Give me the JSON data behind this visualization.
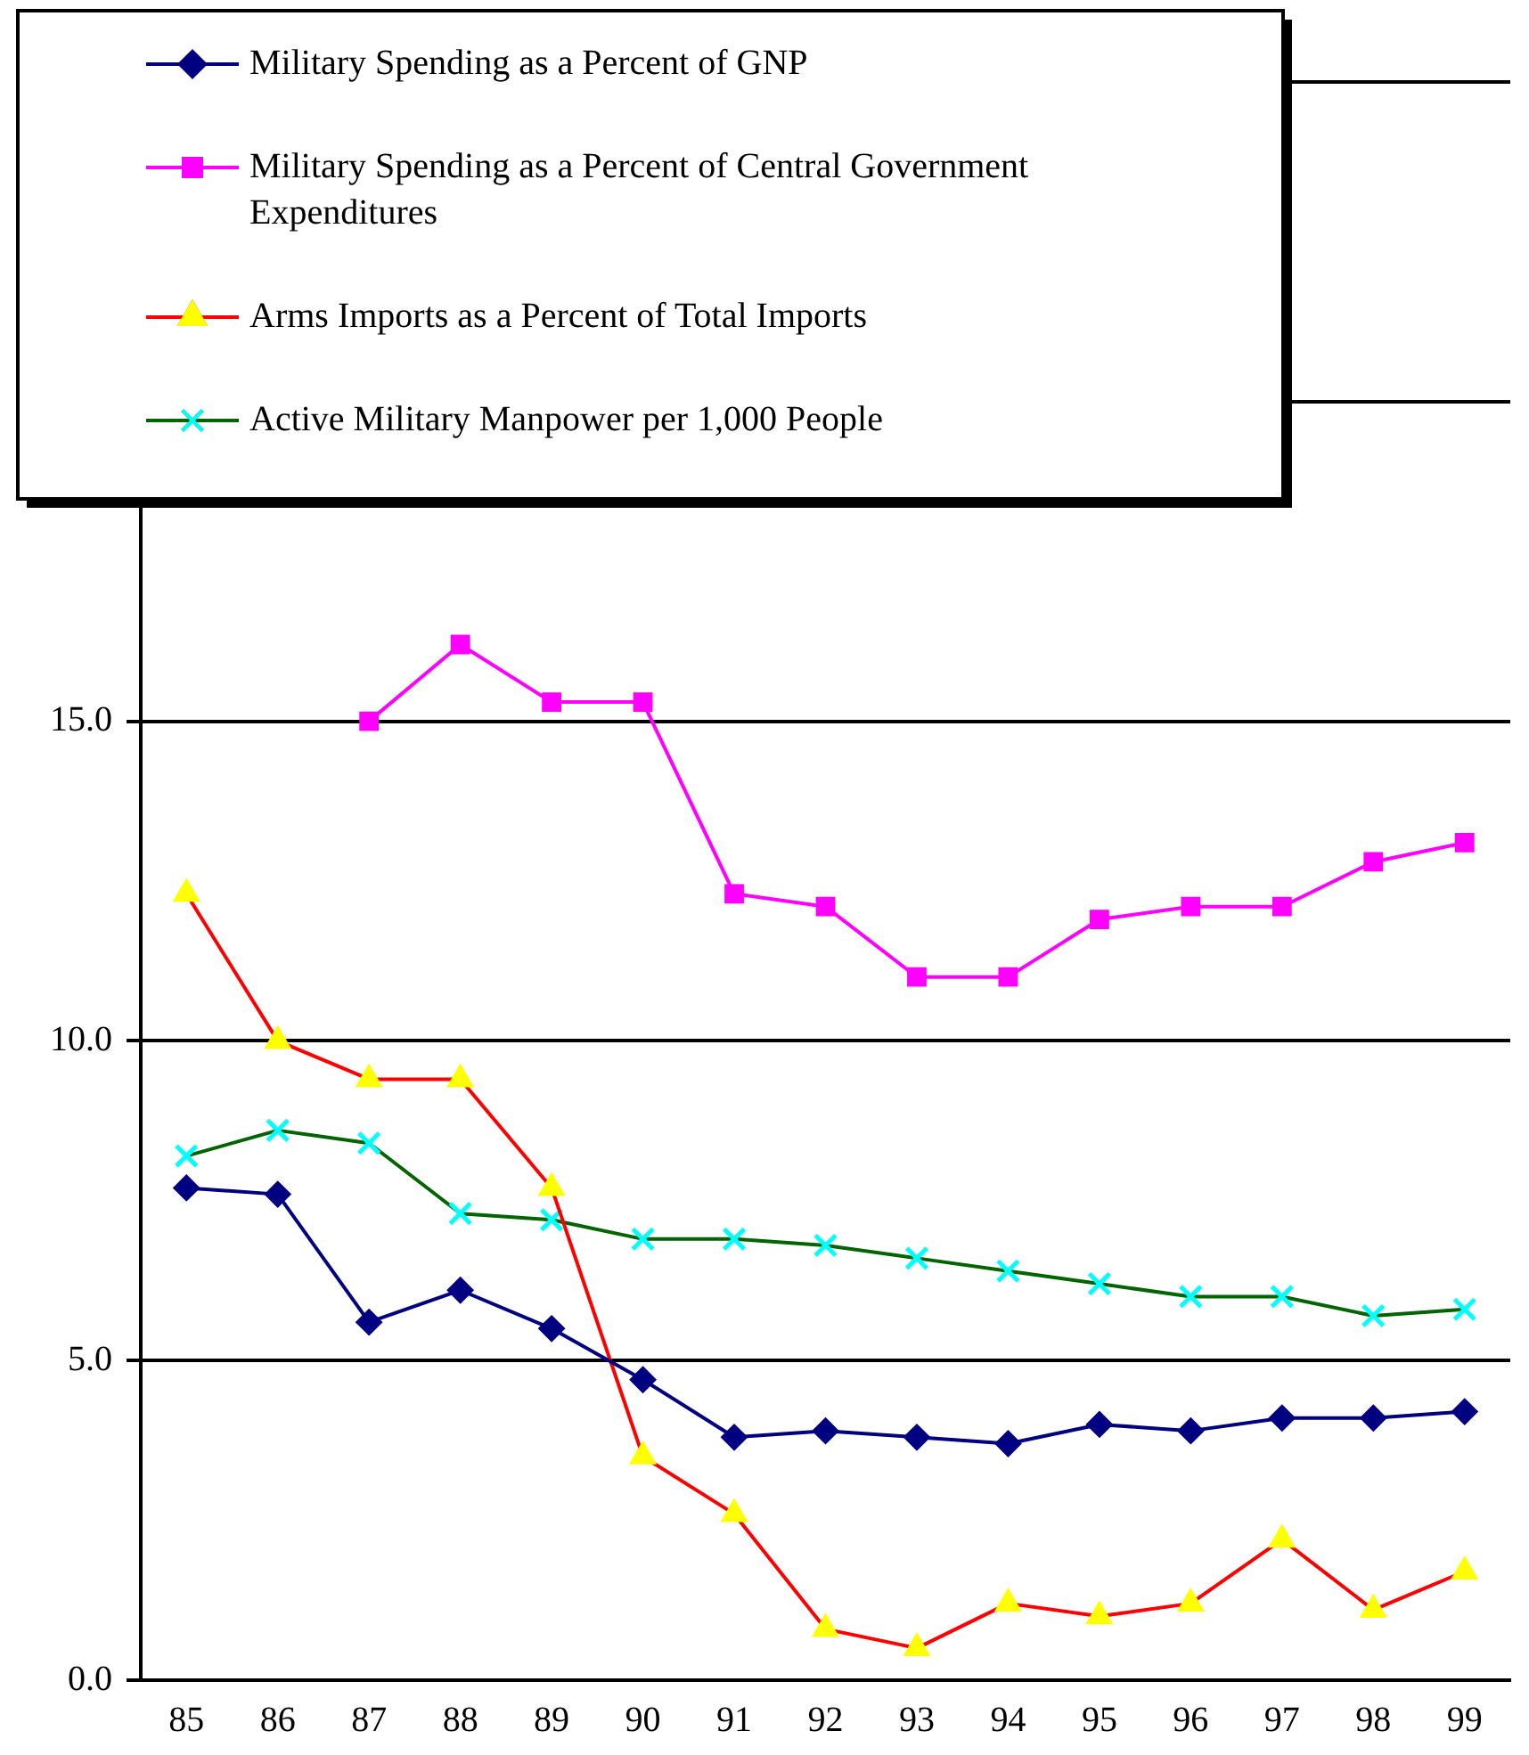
{
  "chart_data": {
    "type": "line",
    "categories": [
      "85",
      "86",
      "87",
      "88",
      "89",
      "90",
      "91",
      "92",
      "93",
      "94",
      "95",
      "96",
      "97",
      "98",
      "99"
    ],
    "ylim": [
      0,
      25
    ],
    "yticks": [
      {
        "value": 0,
        "label": "0.0"
      },
      {
        "value": 5,
        "label": "5.0"
      },
      {
        "value": 10,
        "label": "10.0"
      },
      {
        "value": 15,
        "label": "15.0"
      },
      {
        "value": 20,
        "label": null
      },
      {
        "value": 25,
        "label": null
      }
    ],
    "grid": "y",
    "legend": "top left",
    "series": [
      {
        "name": "Military Spending as a Percent of GNP",
        "color": "#000080",
        "marker": "diamond",
        "values": [
          7.7,
          7.6,
          5.6,
          6.1,
          5.5,
          4.7,
          3.8,
          3.9,
          3.8,
          3.7,
          4.0,
          3.9,
          4.1,
          4.1,
          4.2
        ]
      },
      {
        "name": "Military Spending as a Percent of Central Government Expenditures",
        "color": "#ff00ff",
        "marker": "square",
        "values": [
          null,
          null,
          15.0,
          16.2,
          15.3,
          15.3,
          12.3,
          12.1,
          11.0,
          11.0,
          11.9,
          12.1,
          12.1,
          12.8,
          13.1
        ]
      },
      {
        "name": "Arms Imports as a Percent of Total Imports",
        "color": "#ff0000",
        "colors": [
          "#ffff00",
          "#ffff00",
          "#ffff00",
          "#ffff00",
          "#ffff00",
          "#ffff00",
          "#ffff00",
          "#ffff00",
          "#ffff00",
          "#ffff00",
          "#ffff00",
          "#ffff00",
          "#ffff00",
          "#ffff00",
          "#ffff00"
        ],
        "marker": "triangle",
        "values": [
          12.3,
          10.0,
          9.4,
          9.4,
          7.7,
          3.5,
          2.6,
          0.8,
          0.5,
          1.2,
          1.0,
          1.2,
          2.2,
          1.1,
          1.7
        ]
      },
      {
        "name": "Active Military Manpower per 1,000 People",
        "color": "#006400",
        "colors": [
          "#00ffff",
          "#00ffff",
          "#00ffff",
          "#00ffff",
          "#00ffff",
          "#00ffff",
          "#00ffff",
          "#00ffff",
          "#00ffff",
          "#00ffff",
          "#00ffff",
          "#00ffff",
          "#00ffff",
          "#00ffff",
          "#00ffff"
        ],
        "marker": "cross",
        "values": [
          8.2,
          8.6,
          8.4,
          7.3,
          7.2,
          6.9,
          6.9,
          6.8,
          6.6,
          6.4,
          6.2,
          6.0,
          6.0,
          5.7,
          5.8
        ]
      }
    ]
  }
}
